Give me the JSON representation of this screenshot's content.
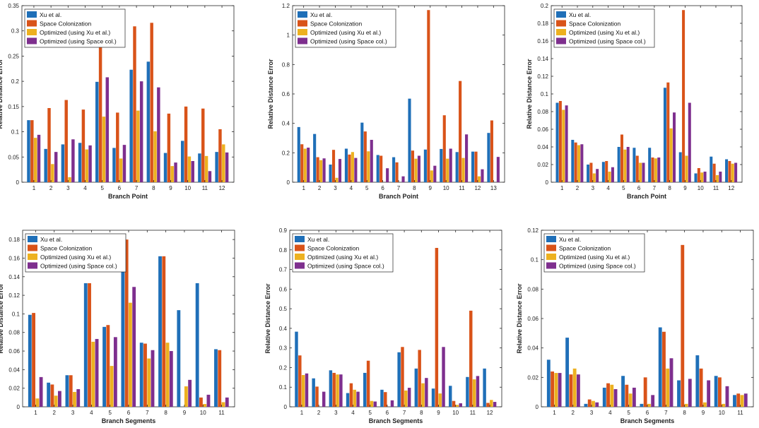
{
  "series_colors": [
    "#1f6fb8",
    "#d95319",
    "#edb120",
    "#7e2f8e"
  ],
  "chart_data": [
    {
      "type": "bar",
      "title": "",
      "xlabel": "Branch Point",
      "ylabel": "Relative Distance Error",
      "ylim": [
        0,
        0.35
      ],
      "yticks": [
        "0",
        "0.05",
        "0.1",
        "0.15",
        "0.2",
        "0.25",
        "0.3",
        "0.35"
      ],
      "legend_position": "top-left",
      "categories": [
        "1",
        "2",
        "3",
        "4",
        "5",
        "6",
        "7",
        "8",
        "9",
        "10",
        "11",
        "12"
      ],
      "series": [
        {
          "name": "Xu et al.",
          "values": [
            0.123,
            0.066,
            0.075,
            0.078,
            0.199,
            0.068,
            0.223,
            0.239,
            0.058,
            0.082,
            0.057,
            0.06
          ]
        },
        {
          "name": "Space Colonization",
          "values": [
            0.123,
            0.147,
            0.163,
            0.144,
            0.274,
            0.138,
            0.309,
            0.316,
            0.136,
            0.15,
            0.146,
            0.105
          ]
        },
        {
          "name": "Optimized (using Xu et al.)",
          "values": [
            0.088,
            0.036,
            0.01,
            0.065,
            0.13,
            0.047,
            0.142,
            0.101,
            0.032,
            0.051,
            0.052,
            0.075
          ]
        },
        {
          "name": "Optimized (using Space col.)",
          "values": [
            0.094,
            0.06,
            0.085,
            0.073,
            0.208,
            0.074,
            0.2,
            0.188,
            0.039,
            0.042,
            0.022,
            0.059
          ]
        }
      ]
    },
    {
      "type": "bar",
      "title": "",
      "xlabel": "Branch Point",
      "ylabel": "Relative Distance Error",
      "ylim": [
        0,
        1.2
      ],
      "yticks": [
        "0",
        "0.2",
        "0.4",
        "0.6",
        "0.8",
        "1",
        "1.2"
      ],
      "legend_position": "top-left",
      "categories": [
        "1",
        "2",
        "3",
        "4",
        "5",
        "6",
        "7",
        "8",
        "9",
        "10",
        "11",
        "12",
        "13"
      ],
      "series": [
        {
          "name": "Xu et al.",
          "values": [
            0.375,
            0.328,
            0.12,
            0.228,
            0.405,
            0.185,
            0.17,
            0.568,
            0.222,
            0.226,
            0.205,
            0.208,
            0.335
          ]
        },
        {
          "name": "Space Colonization",
          "values": [
            0.258,
            0.17,
            0.22,
            0.188,
            0.345,
            0.18,
            0.135,
            0.215,
            1.17,
            0.455,
            0.688,
            0.208,
            0.42
          ]
        },
        {
          "name": "Optimized (using Xu et al.)",
          "values": [
            0.228,
            0.15,
            0.03,
            0.205,
            0.21,
            0.0,
            0.0,
            0.16,
            0.08,
            0.16,
            0.165,
            0.04,
            0.0
          ]
        },
        {
          "name": "Optimized (using Space col.)",
          "values": [
            0.235,
            0.162,
            0.158,
            0.165,
            0.288,
            0.095,
            0.04,
            0.18,
            0.112,
            0.228,
            0.325,
            0.088,
            0.172
          ]
        }
      ]
    },
    {
      "type": "bar",
      "title": "",
      "xlabel": "Branch Point",
      "ylabel": "Relative Distance Error",
      "ylim": [
        0,
        0.2
      ],
      "yticks": [
        "0",
        "0.02",
        "0.04",
        "0.06",
        "0.08",
        "0.1",
        "0.12",
        "0.14",
        "0.16",
        "0.18",
        "0.2"
      ],
      "legend_position": "top-left",
      "categories": [
        "1",
        "2",
        "3",
        "4",
        "5",
        "6",
        "7",
        "8",
        "9",
        "10",
        "11",
        "12"
      ],
      "series": [
        {
          "name": "Xu et al.",
          "values": [
            0.09,
            0.048,
            0.02,
            0.023,
            0.04,
            0.039,
            0.039,
            0.107,
            0.034,
            0.01,
            0.029,
            0.026
          ]
        },
        {
          "name": "Space Colonization",
          "values": [
            0.092,
            0.045,
            0.022,
            0.024,
            0.054,
            0.03,
            0.028,
            0.113,
            0.195,
            0.016,
            0.021,
            0.024
          ]
        },
        {
          "name": "Optimized (using Xu et al.)",
          "values": [
            0.082,
            0.042,
            0.01,
            0.012,
            0.037,
            0.022,
            0.027,
            0.061,
            0.03,
            0.011,
            0.008,
            0.021
          ]
        },
        {
          "name": "Optimized (using Space col.)",
          "values": [
            0.087,
            0.043,
            0.015,
            0.017,
            0.04,
            0.022,
            0.028,
            0.079,
            0.09,
            0.012,
            0.012,
            0.022
          ]
        }
      ]
    },
    {
      "type": "bar",
      "title": "",
      "xlabel": "Branch Segments",
      "ylabel": "Relative Distance Error",
      "ylim": [
        0,
        0.19
      ],
      "yticks": [
        "0",
        "0.02",
        "0.04",
        "0.06",
        "0.08",
        "0.1",
        "0.12",
        "0.14",
        "0.16",
        "0.18"
      ],
      "legend_position": "top-left",
      "categories": [
        "1",
        "2",
        "3",
        "4",
        "5",
        "6",
        "7",
        "8",
        "9",
        "10",
        "11"
      ],
      "series": [
        {
          "name": "Xu et al.",
          "values": [
            0.099,
            0.026,
            0.034,
            0.133,
            0.086,
            0.183,
            0.069,
            0.162,
            0.104,
            0.133,
            0.062
          ]
        },
        {
          "name": "Space Colonization",
          "values": [
            0.101,
            0.024,
            0.034,
            0.133,
            0.088,
            0.18,
            0.068,
            0.162,
            0.0,
            0.01,
            0.061
          ]
        },
        {
          "name": "Optimized (using Xu et al.)",
          "values": [
            0.009,
            0.012,
            0.016,
            0.07,
            0.044,
            0.112,
            0.052,
            0.069,
            0.022,
            0.003,
            0.005
          ]
        },
        {
          "name": "Optimized (using Space col.)",
          "values": [
            0.032,
            0.017,
            0.019,
            0.073,
            0.075,
            0.129,
            0.061,
            0.06,
            0.029,
            0.013,
            0.01
          ]
        }
      ]
    },
    {
      "type": "bar",
      "title": "",
      "xlabel": "Branch Segments",
      "ylabel": "Relative Distance Error",
      "ylim": [
        0,
        0.9
      ],
      "yticks": [
        "0",
        "0.1",
        "0.2",
        "0.3",
        "0.4",
        "0.5",
        "0.6",
        "0.7",
        "0.8",
        "0.9"
      ],
      "legend_position": "top-left",
      "categories": [
        "1",
        "2",
        "3",
        "4",
        "5",
        "6",
        "7",
        "8",
        "9",
        "10",
        "11",
        "12"
      ],
      "series": [
        {
          "name": "Xu et al.",
          "values": [
            0.383,
            0.145,
            0.186,
            0.07,
            0.173,
            0.087,
            0.278,
            0.195,
            0.093,
            0.107,
            0.152,
            0.195
          ]
        },
        {
          "name": "Space Colonization",
          "values": [
            0.262,
            0.103,
            0.173,
            0.12,
            0.235,
            0.075,
            0.305,
            0.29,
            0.81,
            0.03,
            0.49,
            0.02
          ]
        },
        {
          "name": "Optimized (using Xu et al.)",
          "values": [
            0.162,
            0.0,
            0.165,
            0.087,
            0.03,
            0.0,
            0.083,
            0.12,
            0.068,
            0.01,
            0.14,
            0.035
          ]
        },
        {
          "name": "Optimized (using Space col.)",
          "values": [
            0.17,
            0.077,
            0.165,
            0.077,
            0.027,
            0.033,
            0.097,
            0.147,
            0.305,
            0.018,
            0.157,
            0.025
          ]
        }
      ]
    },
    {
      "type": "bar",
      "title": "",
      "xlabel": "Branch Segments",
      "ylabel": "Relative Distance Error",
      "ylim": [
        0,
        0.12
      ],
      "yticks": [
        "0",
        "0.02",
        "0.04",
        "0.06",
        "0.08",
        "0.1",
        "0.12"
      ],
      "legend_position": "top-left",
      "categories": [
        "1",
        "2",
        "3",
        "4",
        "5",
        "6",
        "7",
        "8",
        "9",
        "10",
        "11"
      ],
      "series": [
        {
          "name": "Xu et al.",
          "values": [
            0.032,
            0.047,
            0.002,
            0.013,
            0.021,
            0.002,
            0.054,
            0.018,
            0.035,
            0.021,
            0.008
          ]
        },
        {
          "name": "Space Colonization",
          "values": [
            0.024,
            0.022,
            0.005,
            0.016,
            0.015,
            0.02,
            0.051,
            0.11,
            0.026,
            0.02,
            0.009
          ]
        },
        {
          "name": "Optimized (using Xu et al.)",
          "values": [
            0.023,
            0.026,
            0.004,
            0.015,
            0.009,
            0.002,
            0.026,
            0.002,
            0.003,
            0.002,
            0.008
          ]
        },
        {
          "name": "Optimized (using Space col.)",
          "values": [
            0.023,
            0.022,
            0.003,
            0.012,
            0.013,
            0.008,
            0.033,
            0.019,
            0.018,
            0.014,
            0.009
          ]
        }
      ]
    }
  ]
}
